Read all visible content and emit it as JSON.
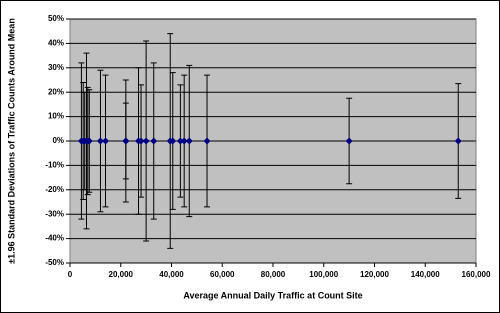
{
  "chart_data": {
    "type": "scatter",
    "x_label": "Average Annual Daily Traffic at Count Site",
    "y_label": "±1.96 Standard Deviations of Traffic Counts Around Mean",
    "x": [
      4500,
      5200,
      5800,
      6500,
      7000,
      7600,
      12000,
      14000,
      22000,
      22000,
      27000,
      28000,
      30000,
      33000,
      39500,
      40500,
      43500,
      45000,
      47000,
      54000,
      110000,
      153000
    ],
    "values": [
      0,
      0,
      0,
      0,
      0,
      0,
      0,
      0,
      0,
      0,
      0,
      0,
      0,
      0,
      0,
      0,
      0,
      0,
      0,
      0,
      0,
      0
    ],
    "errors": [
      32,
      24,
      20,
      36,
      22,
      21,
      29,
      27,
      25,
      15.5,
      30,
      23,
      41,
      32,
      44,
      28,
      23,
      27,
      31,
      27,
      17.5,
      23.5
    ],
    "color": "#000080",
    "xlim": [
      0,
      160000
    ],
    "xticks": [
      0,
      {
        "value": 20000,
        "label": "20,000"
      },
      {
        "value": 40000,
        "label": "40,000"
      },
      {
        "value": 60000,
        "label": "60,000"
      },
      {
        "value": 80000,
        "label": "80,000"
      },
      {
        "value": 100000,
        "label": "100,000"
      },
      {
        "value": 120000,
        "label": "120,000"
      },
      {
        "value": 140000,
        "label": "140,000"
      },
      {
        "value": 160000,
        "label": "160,000"
      }
    ],
    "ylim": [
      -50,
      50
    ],
    "yticks": [
      {
        "value": -50,
        "label": "-50%"
      },
      {
        "value": -40,
        "label": "-40%"
      },
      {
        "value": -30,
        "label": "-30%"
      },
      {
        "value": -20,
        "label": "-20%"
      },
      {
        "value": -10,
        "label": "-10%"
      },
      {
        "value": 0,
        "label": "0%"
      },
      {
        "value": 10,
        "label": "10%"
      },
      {
        "value": 20,
        "label": "20%"
      },
      {
        "value": 30,
        "label": "30%"
      },
      {
        "value": 40,
        "label": "40%"
      },
      {
        "value": 50,
        "label": "50%"
      }
    ],
    "grid": true
  }
}
